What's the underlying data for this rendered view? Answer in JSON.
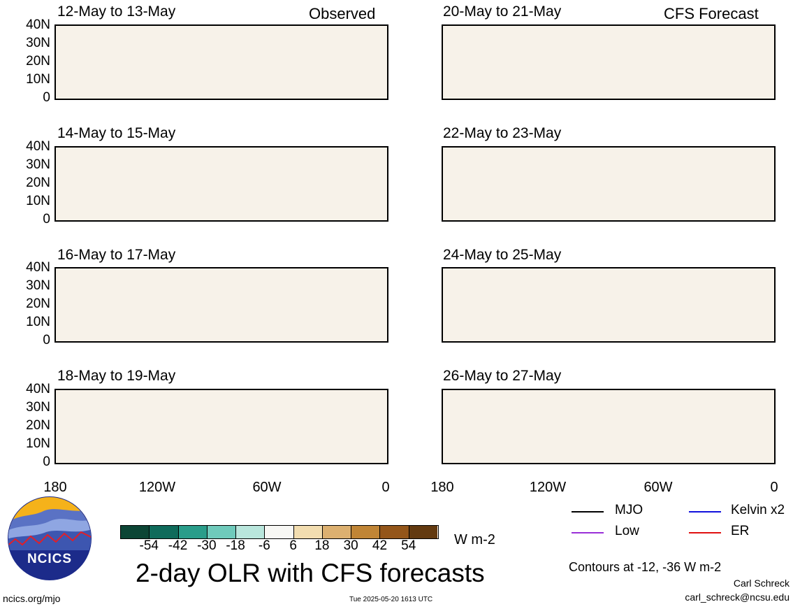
{
  "title": "2-day OLR with CFS forecasts",
  "columns": {
    "left_label": "Observed",
    "right_label": "CFS Forecast"
  },
  "panels_left": [
    {
      "date": "12-May to 13-May"
    },
    {
      "date": "14-May to 15-May"
    },
    {
      "date": "16-May to 17-May"
    },
    {
      "date": "18-May to 19-May"
    }
  ],
  "panels_right": [
    {
      "date": "20-May to 21-May"
    },
    {
      "date": "22-May to 23-May"
    },
    {
      "date": "24-May to 25-May"
    },
    {
      "date": "26-May to 27-May"
    }
  ],
  "y_ticks": [
    "40N",
    "30N",
    "20N",
    "10N",
    "0"
  ],
  "x_ticks": [
    "180",
    "120W",
    "60W",
    "0"
  ],
  "colorbar": {
    "unit": "W m-2",
    "ticks": [
      "-54",
      "-42",
      "-30",
      "-18",
      "-6",
      "6",
      "18",
      "30",
      "42",
      "54"
    ],
    "colors": [
      "#0c4535",
      "#0f6b5b",
      "#2a9d8a",
      "#6fcabb",
      "#b9e6dc",
      "#f7f7f4",
      "#f2ddb0",
      "#dcb070",
      "#c08536",
      "#94561a",
      "#633a10"
    ]
  },
  "legend": [
    {
      "label": "MJO",
      "color": "#000000"
    },
    {
      "label": "Kelvin x2",
      "color": "#1010dd"
    },
    {
      "label": "Low",
      "color": "#9a30d8"
    },
    {
      "label": "ER",
      "color": "#e01010"
    }
  ],
  "contours_note": "Contours at -12, -36 W m-2",
  "author": "Carl Schreck",
  "email": "carl_schreck@ncsu.edu",
  "website": "ncics.org/mjo",
  "timestamp": "Tue 2025-05-20 1613 UTC",
  "logo_text": "NCICS"
}
